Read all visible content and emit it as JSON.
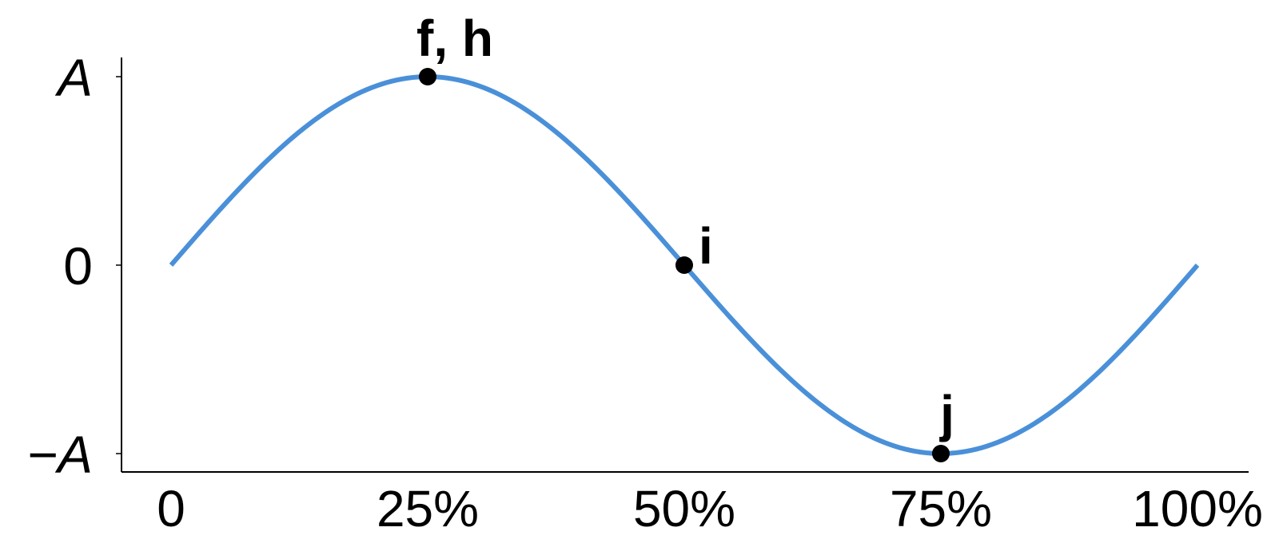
{
  "chart_data": {
    "type": "line",
    "title": "",
    "xlabel": "",
    "ylabel": "",
    "xlim": [
      0,
      100
    ],
    "ylim": [
      -1,
      1
    ],
    "x_ticks": [
      {
        "value": 0,
        "label": "0"
      },
      {
        "value": 25,
        "label": "25%"
      },
      {
        "value": 50,
        "label": "50%"
      },
      {
        "value": 75,
        "label": "75%"
      },
      {
        "value": 100,
        "label": "100%"
      }
    ],
    "y_ticks": [
      {
        "value": 1,
        "label": "A"
      },
      {
        "value": 0,
        "label": "0"
      },
      {
        "value": -1,
        "label": "−A"
      }
    ],
    "grid": false,
    "series": [
      {
        "function": "sine",
        "period": 100,
        "amplitude": 1,
        "x_range": [
          0,
          100
        ],
        "color": "#4a90d9"
      }
    ],
    "points": [
      {
        "label": "f, h",
        "x": 25,
        "y": 1
      },
      {
        "label": "i",
        "x": 50,
        "y": 0
      },
      {
        "label": "j",
        "x": 75,
        "y": -1
      }
    ]
  }
}
